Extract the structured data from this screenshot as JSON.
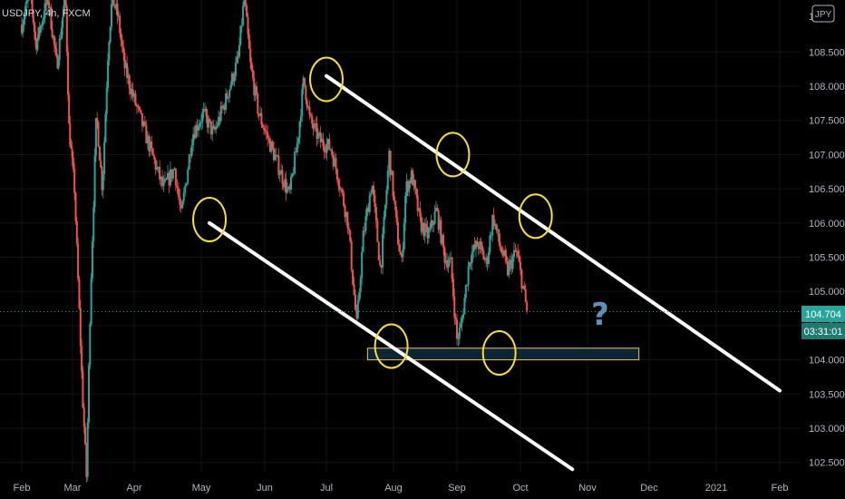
{
  "chart_data": {
    "type": "candlestick",
    "title": "USDJPY, 4h, FXCM",
    "currency": "JPY",
    "x_ticks": [
      "Feb",
      "Mar",
      "Apr",
      "May",
      "Jun",
      "Jul",
      "Aug",
      "Sep",
      "Oct",
      "Nov",
      "Dec",
      "2021",
      "Feb"
    ],
    "y_ticks": [
      "102.500",
      "103.000",
      "103.500",
      "104.000",
      "104.500",
      "105.000",
      "105.500",
      "106.000",
      "106.500",
      "107.000",
      "107.500",
      "108.000",
      "108.500"
    ],
    "ylim": [
      102.4,
      109.35
    ],
    "last_price": "104.704",
    "countdown": "03:31:01",
    "colors": {
      "up": "#26a69a",
      "down": "#ef5350",
      "trendline": "#ffffff",
      "circle": "#f5e02a",
      "zone_fill": "#0f2a3d",
      "zone_border": "#f0c35a",
      "price_badge": "#26a69a"
    },
    "annotations": [
      {
        "type": "trendline",
        "name": "upper",
        "from": [
          "Jul 1",
          108.15
        ],
        "to": [
          "Feb 20 2021",
          103.55
        ]
      },
      {
        "type": "trendline",
        "name": "lower",
        "from": [
          "May 5",
          106.0
        ],
        "to": [
          "Oct 25",
          102.4
        ]
      },
      {
        "type": "circle",
        "at": [
          "Jul 1",
          108.1
        ]
      },
      {
        "type": "circle",
        "at": [
          "Aug 30",
          107.0
        ]
      },
      {
        "type": "circle",
        "at": [
          "Oct 8",
          106.1
        ]
      },
      {
        "type": "circle",
        "at": [
          "May 5",
          106.05
        ]
      },
      {
        "type": "circle",
        "at": [
          "Jul 31",
          104.2
        ]
      },
      {
        "type": "circle",
        "at": [
          "Sep 21",
          104.1
        ]
      },
      {
        "type": "zone",
        "from": "Jul 20",
        "to": "Nov 26",
        "y": [
          104.0,
          104.17
        ]
      },
      {
        "type": "text",
        "text": "?"
      }
    ],
    "anchors": [
      [
        0,
        108.9
      ],
      [
        5,
        109.4
      ],
      [
        8,
        108.6
      ],
      [
        15,
        109.3
      ],
      [
        20,
        108.3
      ],
      [
        25,
        109.35
      ],
      [
        27,
        107.4
      ],
      [
        30,
        106.5
      ],
      [
        34,
        103.5
      ],
      [
        36,
        102.3
      ],
      [
        38,
        104.9
      ],
      [
        41,
        107.6
      ],
      [
        44,
        106.5
      ],
      [
        47,
        108.6
      ],
      [
        49,
        109.3
      ],
      [
        52,
        109.0
      ],
      [
        55,
        108.3
      ],
      [
        58,
        108.0
      ],
      [
        63,
        107.5
      ],
      [
        68,
        107.0
      ],
      [
        73,
        106.5
      ],
      [
        78,
        106.8
      ],
      [
        81,
        106.1
      ],
      [
        86,
        107.3
      ],
      [
        91,
        107.6
      ],
      [
        96,
        107.3
      ],
      [
        102,
        107.8
      ],
      [
        108,
        108.4
      ],
      [
        111,
        109.3
      ],
      [
        114,
        108.3
      ],
      [
        118,
        107.6
      ],
      [
        123,
        107.2
      ],
      [
        128,
        106.8
      ],
      [
        133,
        106.4
      ],
      [
        137,
        107.2
      ],
      [
        140,
        108.1
      ],
      [
        143,
        107.5
      ],
      [
        148,
        107.2
      ],
      [
        153,
        107.1
      ],
      [
        157,
        106.6
      ],
      [
        161,
        106.0
      ],
      [
        165,
        104.5
      ],
      [
        168,
        105.8
      ],
      [
        172,
        106.6
      ],
      [
        176,
        105.3
      ],
      [
        180,
        107.0
      ],
      [
        184,
        105.8
      ],
      [
        186,
        105.4
      ],
      [
        188,
        106.5
      ],
      [
        191,
        106.7
      ],
      [
        195,
        106.0
      ],
      [
        199,
        105.8
      ],
      [
        203,
        106.2
      ],
      [
        207,
        105.5
      ],
      [
        210,
        105.4
      ],
      [
        213,
        104.3
      ],
      [
        215,
        104.5
      ],
      [
        219,
        105.5
      ],
      [
        223,
        105.7
      ],
      [
        227,
        105.4
      ],
      [
        230,
        106.1
      ],
      [
        233,
        105.7
      ],
      [
        237,
        105.3
      ],
      [
        241,
        105.6
      ],
      [
        244,
        105.1
      ],
      [
        246,
        104.7
      ]
    ]
  }
}
